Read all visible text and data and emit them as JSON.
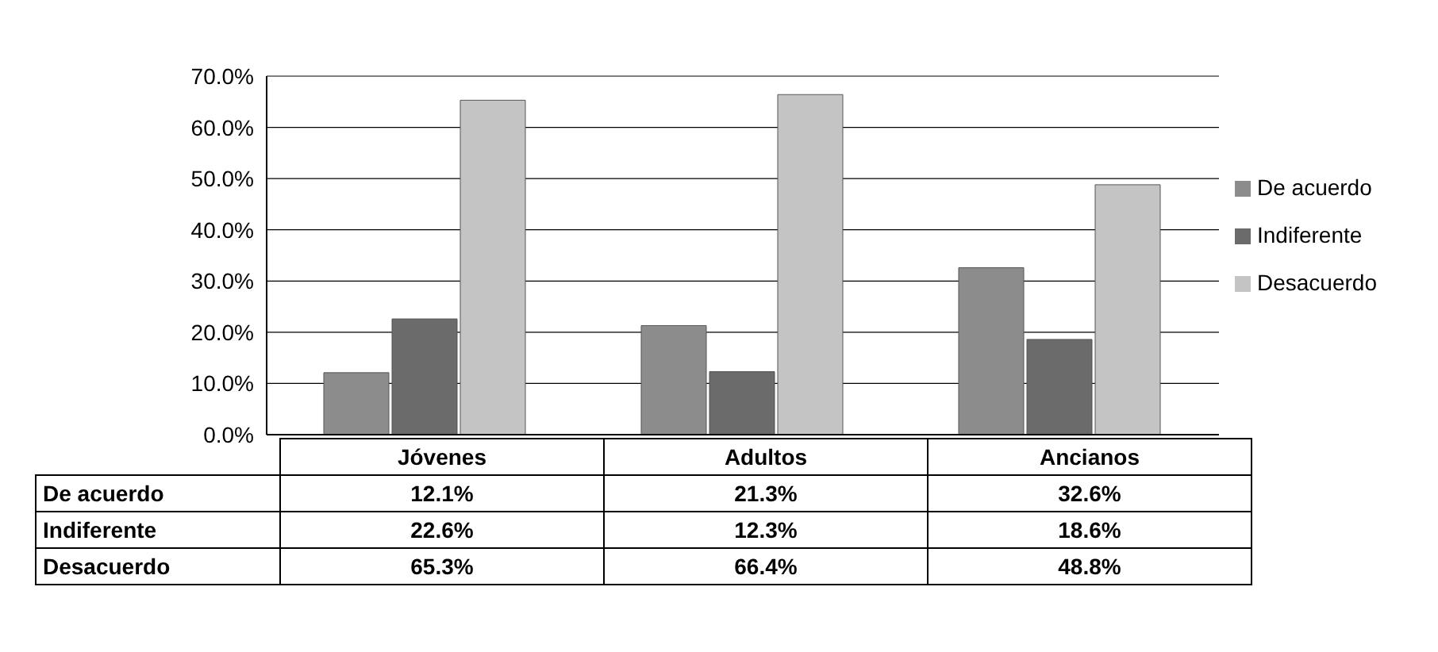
{
  "chart_data": {
    "type": "bar",
    "categories": [
      "Jóvenes",
      "Adultos",
      "Ancianos"
    ],
    "series": [
      {
        "name": "De acuerdo",
        "color": "#8c8c8c",
        "values": [
          12.1,
          21.3,
          32.6
        ],
        "value_labels": [
          "12.1%",
          "21.3%",
          "32.6%"
        ]
      },
      {
        "name": "Indiferente",
        "color": "#6b6b6b",
        "values": [
          22.6,
          12.3,
          18.6
        ],
        "value_labels": [
          "22.6%",
          "12.3%",
          "18.6%"
        ]
      },
      {
        "name": "Desacuerdo",
        "color": "#c4c4c4",
        "values": [
          65.3,
          66.4,
          48.8
        ],
        "value_labels": [
          "65.3%",
          "66.4%",
          "48.8%"
        ]
      }
    ],
    "ylim": [
      0,
      70
    ],
    "yticks": [
      {
        "value": 0,
        "label": "0.0%"
      },
      {
        "value": 10,
        "label": "10.0%"
      },
      {
        "value": 20,
        "label": "20.0%"
      },
      {
        "value": 30,
        "label": "30.0%"
      },
      {
        "value": 40,
        "label": "40.0%"
      },
      {
        "value": 50,
        "label": "50.0%"
      },
      {
        "value": 60,
        "label": "60.0%"
      },
      {
        "value": 70,
        "label": "70.0%"
      }
    ],
    "grid": "y",
    "legend": "right"
  }
}
